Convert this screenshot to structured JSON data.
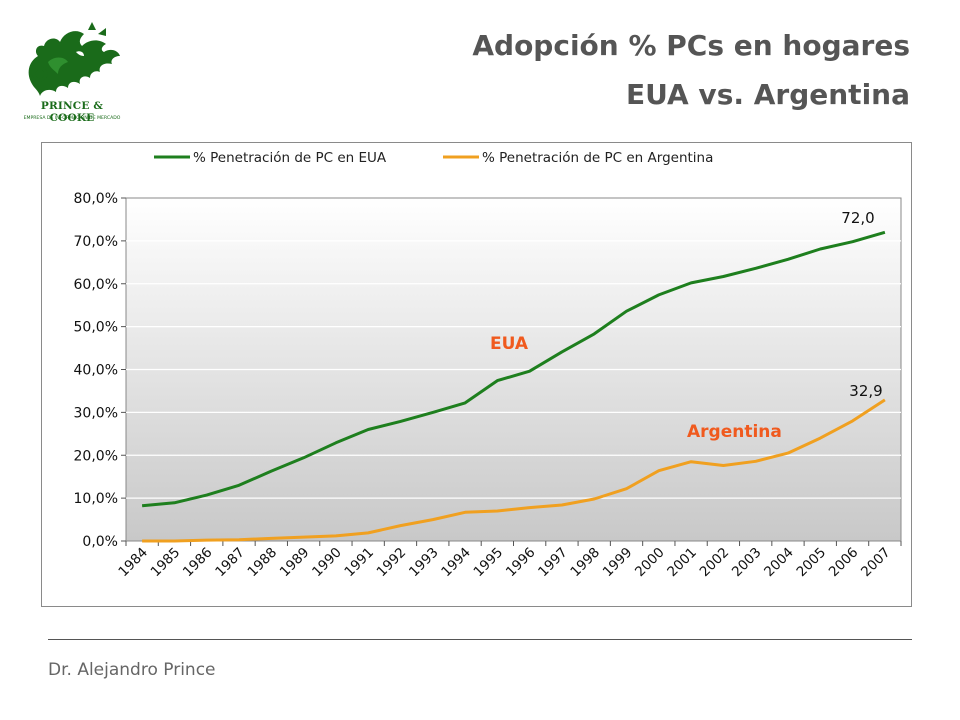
{
  "slide": {
    "title_line1": "Adopción % PCs en hogares",
    "title_line2": "EUA vs. Argentina",
    "author": "Dr. Alejandro Prince"
  },
  "logo": {
    "name": "PRINCE & COOKE",
    "tagline": "EMPRESA DE INFORMACIÓN DE MERCADO",
    "icon": "dragon-icon",
    "color": "#1a6b1a"
  },
  "chart_data": {
    "type": "line",
    "title": "",
    "xlabel": "",
    "ylabel": "",
    "categories": [
      "1984",
      "1985",
      "1986",
      "1987",
      "1988",
      "1989",
      "1990",
      "1991",
      "1992",
      "1993",
      "1994",
      "1995",
      "1996",
      "1997",
      "1998",
      "1999",
      "2000",
      "2001",
      "2002",
      "2003",
      "2004",
      "2005",
      "2006",
      "2007"
    ],
    "ylim": [
      0,
      80
    ],
    "yticks": [
      "0,0%",
      "10,0%",
      "20,0%",
      "30,0%",
      "40,0%",
      "50,0%",
      "60,0%",
      "70,0%",
      "80,0%"
    ],
    "grid": true,
    "legend_position": "top",
    "series": [
      {
        "name": "% Penetración de PC en EUA",
        "color": "#1e7f1e",
        "label": "EUA",
        "end_label": "72,0",
        "values": [
          8.2,
          8.9,
          10.7,
          13.0,
          16.3,
          19.4,
          22.9,
          26.0,
          27.9,
          30.0,
          32.2,
          37.4,
          39.6,
          44.1,
          48.3,
          53.6,
          57.4,
          60.2,
          61.7,
          63.6,
          65.7,
          68.1,
          69.8,
          72.0
        ]
      },
      {
        "name": "% Penetración de PC en Argentina",
        "color": "#f0a020",
        "label": "Argentina",
        "end_label": "32,9",
        "values": [
          0.0,
          0.0,
          0.2,
          0.3,
          0.6,
          0.9,
          1.2,
          1.9,
          3.6,
          5.0,
          6.7,
          7.0,
          7.8,
          8.4,
          9.8,
          12.2,
          16.4,
          18.5,
          17.6,
          18.6,
          20.5,
          24.0,
          28.0,
          32.9
        ]
      }
    ],
    "label_color": "#f05a1e"
  }
}
